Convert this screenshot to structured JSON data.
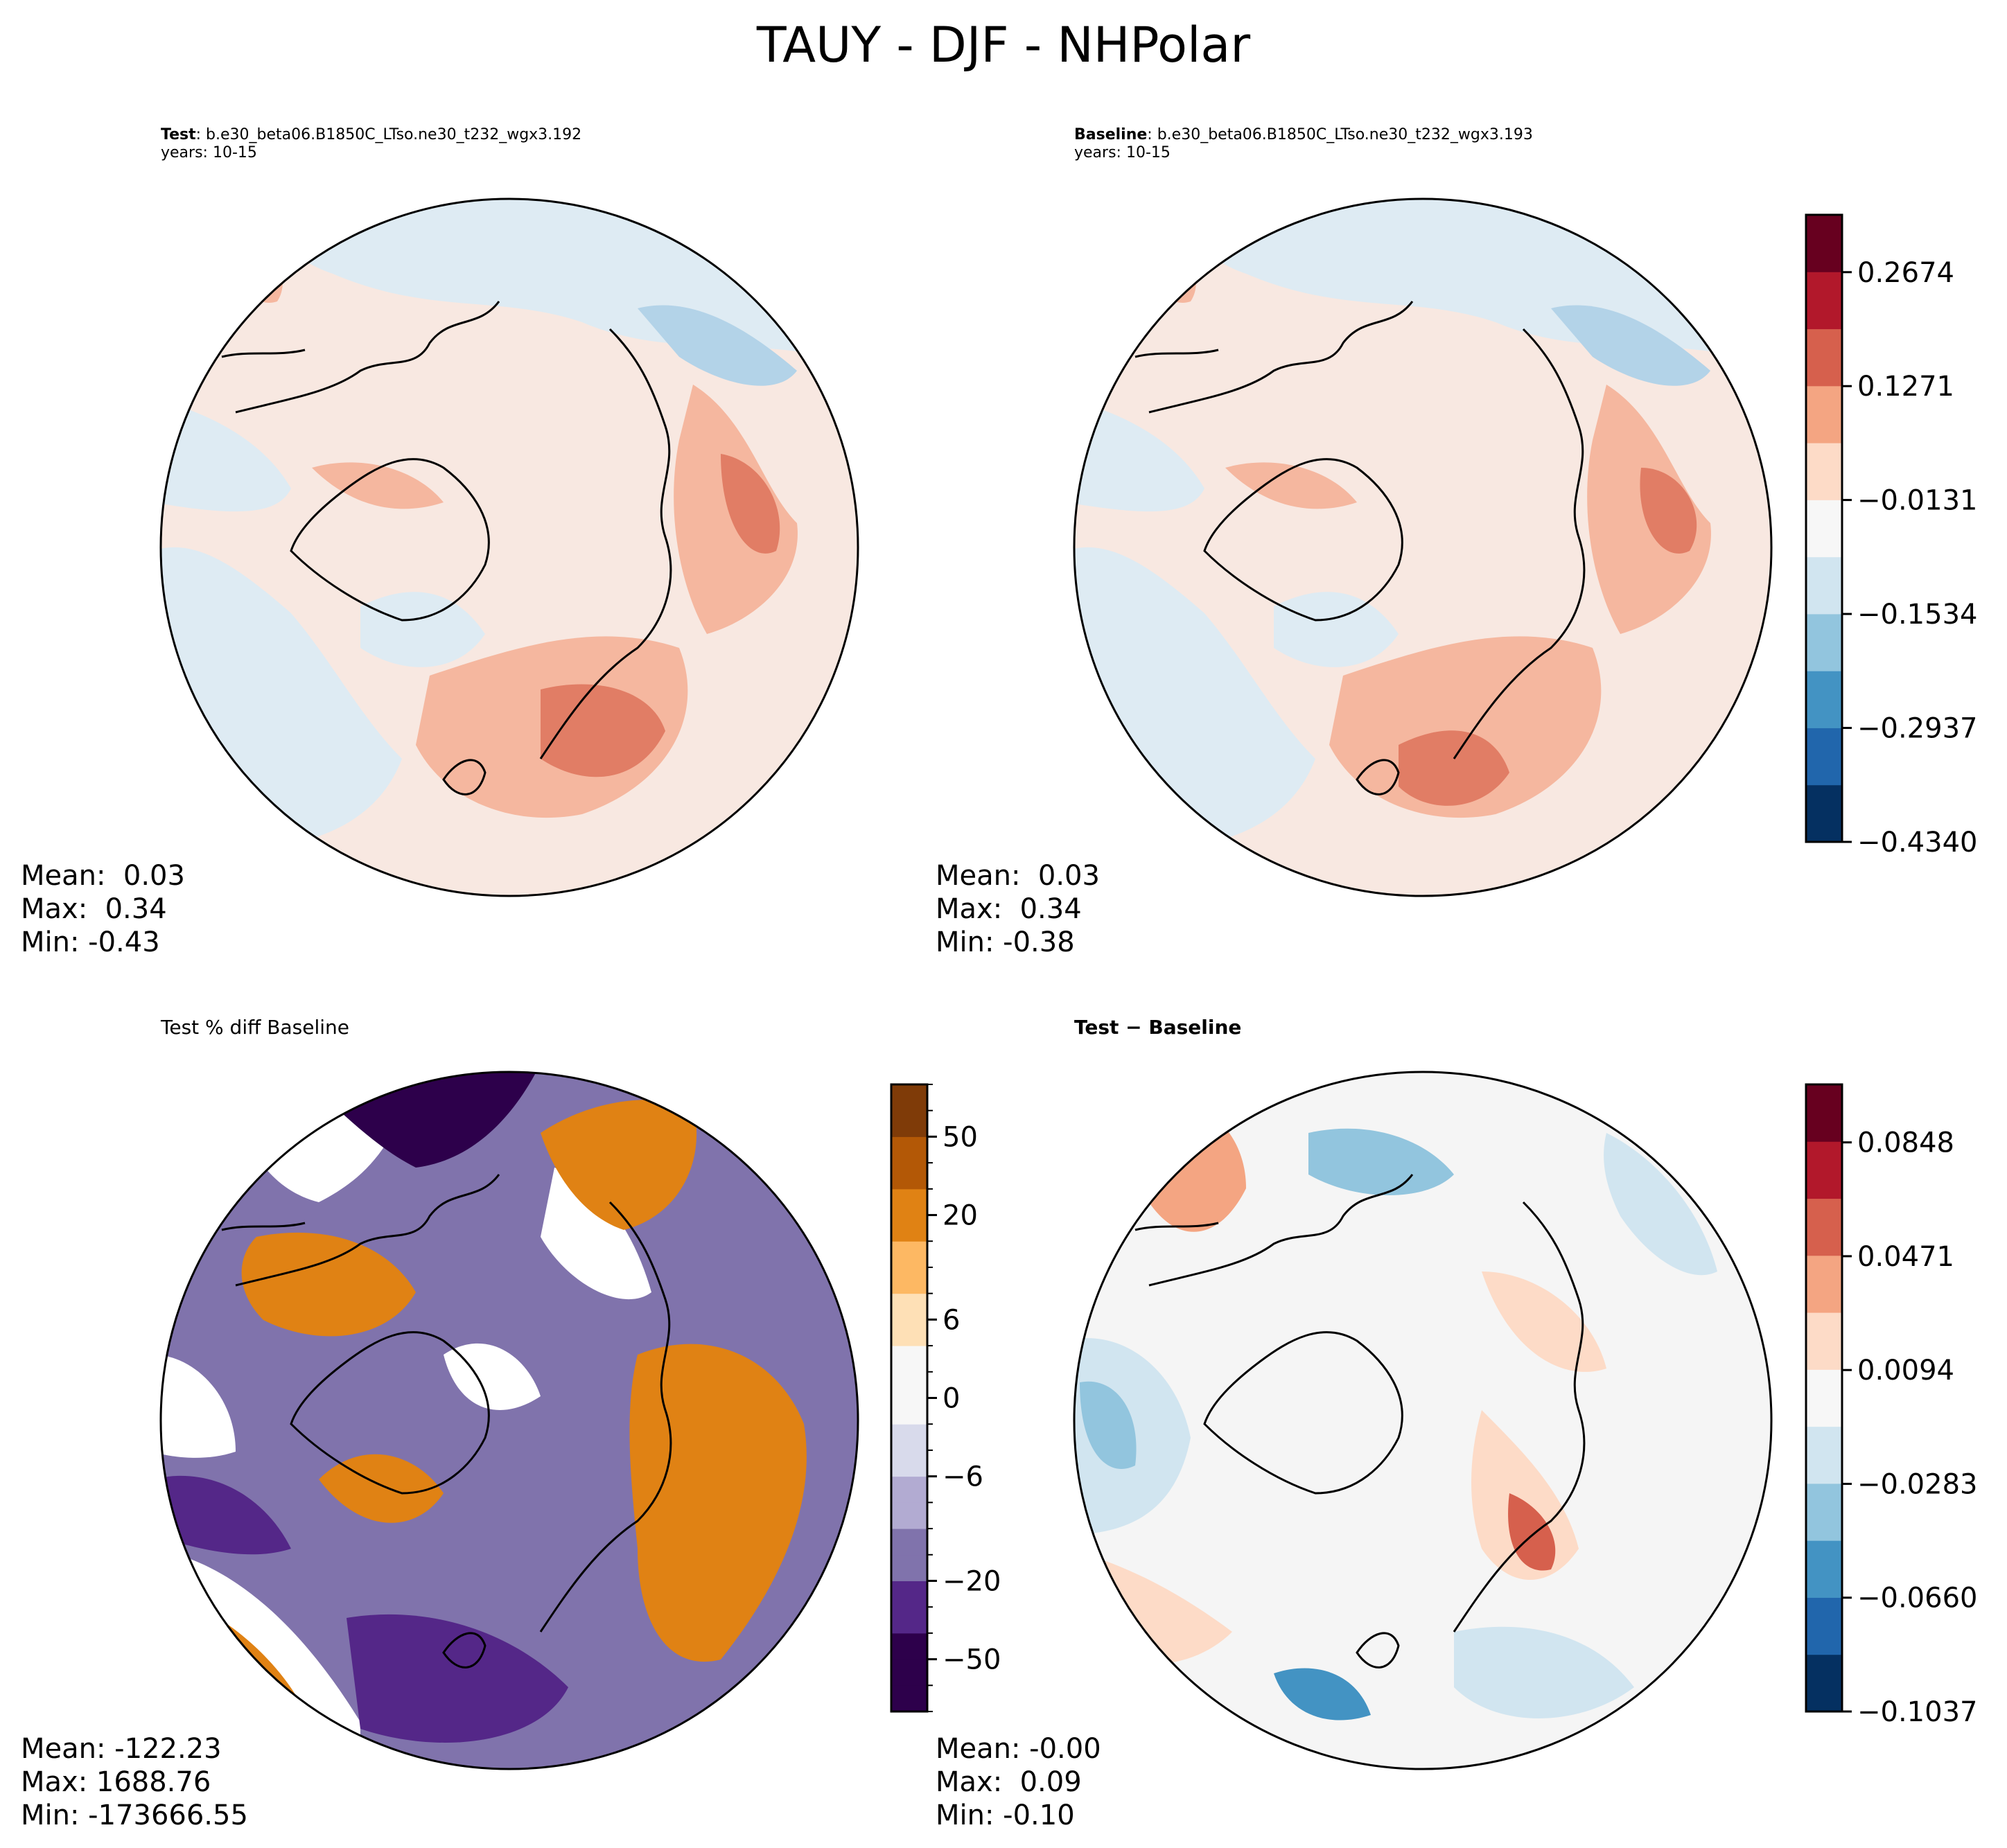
{
  "figure_title": "TAUY - DJF - NHPolar",
  "panels": {
    "test": {
      "label_bold": "Test",
      "label_rest": ": b.e30_beta06.B1850C_LTso.ne30_t232_wgx3.192",
      "years": "years: 10-15",
      "stats": [
        "Mean:  0.03",
        "Max:  0.34",
        "Min: -0.43"
      ]
    },
    "baseline": {
      "label_bold": "Baseline",
      "label_rest": ": b.e30_beta06.B1850C_LTso.ne30_t232_wgx3.193",
      "years": "years: 10-15",
      "stats": [
        "Mean:  0.03",
        "Max:  0.34",
        "Min: -0.38"
      ]
    },
    "pctdiff": {
      "label": "Test % diff Baseline",
      "stats": [
        "Mean: -122.23",
        "Max: 1688.76",
        "Min: -173666.55"
      ]
    },
    "diff": {
      "label": "Test − Baseline",
      "stats": [
        "Mean: -0.00",
        "Max:  0.09",
        "Min: -0.10"
      ]
    }
  },
  "chart_data": [
    {
      "type": "heatmap",
      "name": "colorbar-field",
      "ticks": [
        "0.2674",
        "0.1271",
        "−0.0131",
        "−0.1534",
        "−0.2937",
        "−0.4340"
      ],
      "range": [
        -0.434,
        0.338
      ],
      "colors": [
        "#053061",
        "#2166ac",
        "#4393c3",
        "#92c5de",
        "#d1e5f0",
        "#f7f7f7",
        "#fddbc7",
        "#f4a582",
        "#d6604d",
        "#b2182b",
        "#67001f"
      ]
    },
    {
      "type": "heatmap",
      "name": "colorbar-pctdiff",
      "ticks": [
        "50",
        "20",
        "6",
        "0",
        "−6",
        "−20",
        "−50"
      ],
      "levels": [
        -100,
        -75,
        -50,
        -40,
        -30,
        -20,
        -15,
        -10,
        -8,
        -6,
        -4,
        -2,
        0,
        2,
        4,
        6,
        8,
        10,
        15,
        20,
        30,
        40,
        50,
        75,
        100
      ],
      "colors": [
        "#2d004b",
        "#542788",
        "#8073ac",
        "#b2abd2",
        "#d8daeb",
        "#f7f7f7",
        "#fee0b6",
        "#fdb863",
        "#e08214",
        "#b35806",
        "#7f3b08"
      ]
    },
    {
      "type": "heatmap",
      "name": "colorbar-diff",
      "ticks": [
        "0.0848",
        "0.0471",
        "0.0094",
        "−0.0283",
        "−0.0660",
        "−0.1037"
      ],
      "range": [
        -0.1037,
        0.104
      ],
      "colors": [
        "#053061",
        "#2166ac",
        "#4393c3",
        "#92c5de",
        "#d1e5f0",
        "#f7f7f7",
        "#fddbc7",
        "#f4a582",
        "#d6604d",
        "#b2182b",
        "#67001f"
      ]
    }
  ]
}
